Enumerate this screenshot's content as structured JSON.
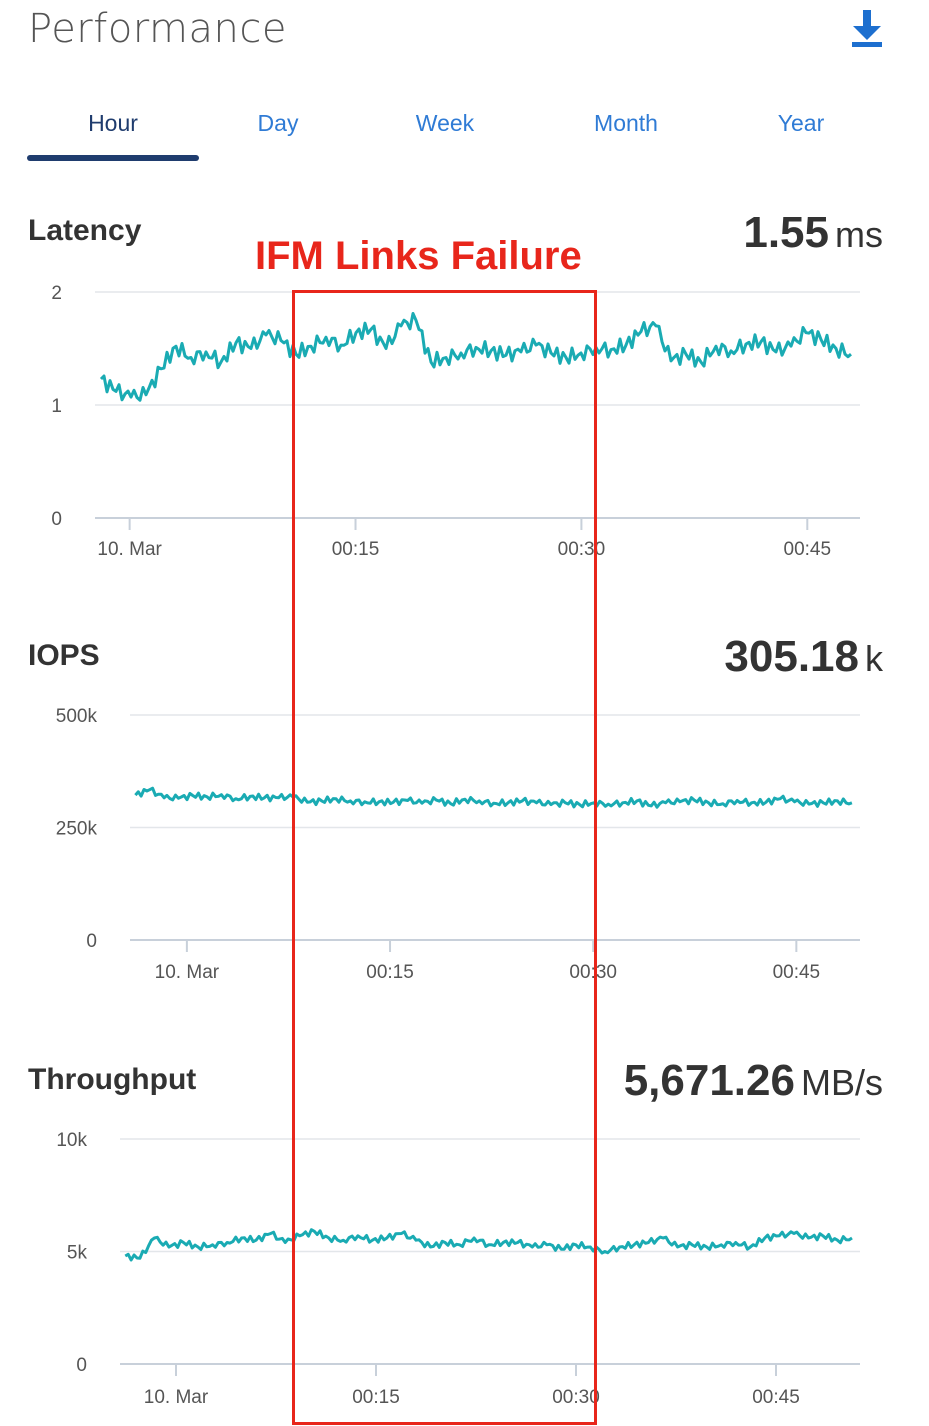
{
  "header": {
    "title": "Performance",
    "download_icon": "download-icon"
  },
  "tabs": [
    {
      "label": "Hour",
      "active": true
    },
    {
      "label": "Day",
      "active": false
    },
    {
      "label": "Week",
      "active": false
    },
    {
      "label": "Month",
      "active": false
    },
    {
      "label": "Year",
      "active": false
    }
  ],
  "annotation": {
    "label": "IFM Links Failure",
    "color": "#e8261b"
  },
  "colors": {
    "series": "#1aabb3",
    "grid": "#e3e6ea",
    "axis": "#c8d0da",
    "tab_active": "#1f3c6e",
    "tab_inactive": "#2f7bd5"
  },
  "chart_data": [
    {
      "type": "line",
      "title": "Latency",
      "current_value": "1.55",
      "current_unit": "ms",
      "ylim": [
        0,
        2
      ],
      "yticks": [
        {
          "value": 0,
          "label": "0"
        },
        {
          "value": 1,
          "label": "1"
        },
        {
          "value": 2,
          "label": "2"
        }
      ],
      "xticks": [
        "10. Mar",
        "00:15",
        "00:30",
        "00:45"
      ],
      "x_minutes_range": [
        -2.3,
        48.5
      ],
      "xtick_minutes": [
        0,
        15,
        30,
        45
      ],
      "grid": true,
      "series": [
        {
          "x": [
            0,
            1,
            2,
            3,
            4,
            5,
            6,
            7,
            8,
            9,
            10,
            11,
            12,
            13,
            14,
            15,
            16,
            17,
            18,
            19,
            20,
            21,
            22,
            23,
            24,
            25,
            26,
            27,
            28,
            29,
            30,
            31,
            32,
            33,
            34,
            35,
            36,
            37,
            38,
            39,
            40,
            41,
            42,
            43,
            44,
            45,
            46,
            47,
            48,
            49,
            50
          ],
          "values": [
            1.23,
            1.12,
            1.07,
            1.09,
            1.32,
            1.52,
            1.42,
            1.47,
            1.38,
            1.55,
            1.5,
            1.62,
            1.57,
            1.45,
            1.52,
            1.6,
            1.53,
            1.64,
            1.67,
            1.5,
            1.7,
            1.75,
            1.38,
            1.42,
            1.46,
            1.51,
            1.48,
            1.44,
            1.47,
            1.53,
            1.46,
            1.42,
            1.46,
            1.51,
            1.49,
            1.53,
            1.65,
            1.7,
            1.39,
            1.45,
            1.38,
            1.52,
            1.48,
            1.54,
            1.56,
            1.47,
            1.52,
            1.64,
            1.58,
            1.5,
            1.45
          ]
        }
      ]
    },
    {
      "type": "line",
      "title": "IOPS",
      "current_value": "305.18",
      "current_unit": "k",
      "ylim": [
        0,
        500000
      ],
      "yticks": [
        {
          "value": 0,
          "label": "0"
        },
        {
          "value": 250000,
          "label": "250k"
        },
        {
          "value": 500000,
          "label": "500k"
        }
      ],
      "xticks": [
        "10. Mar",
        "00:15",
        "00:30",
        "00:45"
      ],
      "x_minutes_range": [
        -4.2,
        49.7
      ],
      "xtick_minutes": [
        0,
        15,
        30,
        45
      ],
      "grid": true,
      "series": [
        {
          "x": [
            0,
            1,
            2,
            3,
            4,
            5,
            6,
            7,
            8,
            9,
            10,
            11,
            12,
            13,
            14,
            15,
            16,
            17,
            18,
            19,
            20,
            21,
            22,
            23,
            24,
            25,
            26,
            27,
            28,
            29,
            30,
            31,
            32,
            33,
            34,
            35,
            36,
            37,
            38,
            39,
            40,
            41,
            42,
            43,
            44,
            45,
            46,
            47,
            48,
            49,
            50
          ],
          "values": [
            322000,
            334000,
            316000,
            315000,
            321000,
            318000,
            323000,
            314000,
            319000,
            316000,
            316000,
            318000,
            306000,
            309000,
            314000,
            309000,
            307000,
            307000,
            306000,
            310000,
            304000,
            311000,
            303000,
            313000,
            309000,
            304000,
            305000,
            309000,
            305000,
            301000,
            305000,
            301000,
            305000,
            302000,
            305000,
            309000,
            298000,
            305000,
            307000,
            311000,
            305000,
            303000,
            310000,
            305000,
            306000,
            314000,
            307000,
            302000,
            305000,
            309000,
            305000
          ]
        }
      ]
    },
    {
      "type": "line",
      "title": "Throughput",
      "current_value": "5,671.26",
      "current_unit": "MB/s",
      "ylim": [
        0,
        10000
      ],
      "yticks": [
        {
          "value": 0,
          "label": "0"
        },
        {
          "value": 5000,
          "label": "5k"
        },
        {
          "value": 10000,
          "label": "10k"
        }
      ],
      "xticks": [
        "10. Mar",
        "00:15",
        "00:30",
        "00:45"
      ],
      "x_minutes_range": [
        -4.2,
        51.3
      ],
      "xtick_minutes": [
        0,
        15,
        30,
        45
      ],
      "grid": true,
      "series": [
        {
          "x": [
            0,
            1,
            2,
            3,
            4,
            5,
            6,
            7,
            8,
            9,
            10,
            11,
            12,
            13,
            14,
            15,
            16,
            17,
            18,
            19,
            20,
            21,
            22,
            23,
            24,
            25,
            26,
            27,
            28,
            29,
            30,
            31,
            32,
            33,
            34,
            35,
            36,
            37,
            38,
            39,
            40,
            41,
            42,
            43,
            44,
            45,
            46,
            47,
            48,
            49,
            50
          ],
          "values": [
            4800,
            4700,
            5600,
            5200,
            5400,
            5200,
            5300,
            5400,
            5600,
            5500,
            5800,
            5400,
            5700,
            5900,
            5600,
            5500,
            5700,
            5500,
            5600,
            5800,
            5500,
            5200,
            5400,
            5300,
            5600,
            5300,
            5400,
            5400,
            5200,
            5300,
            5100,
            5300,
            5200,
            5000,
            5200,
            5300,
            5400,
            5600,
            5200,
            5300,
            5200,
            5300,
            5400,
            5200,
            5600,
            5700,
            5800,
            5600,
            5700,
            5500,
            5600
          ]
        }
      ]
    }
  ]
}
